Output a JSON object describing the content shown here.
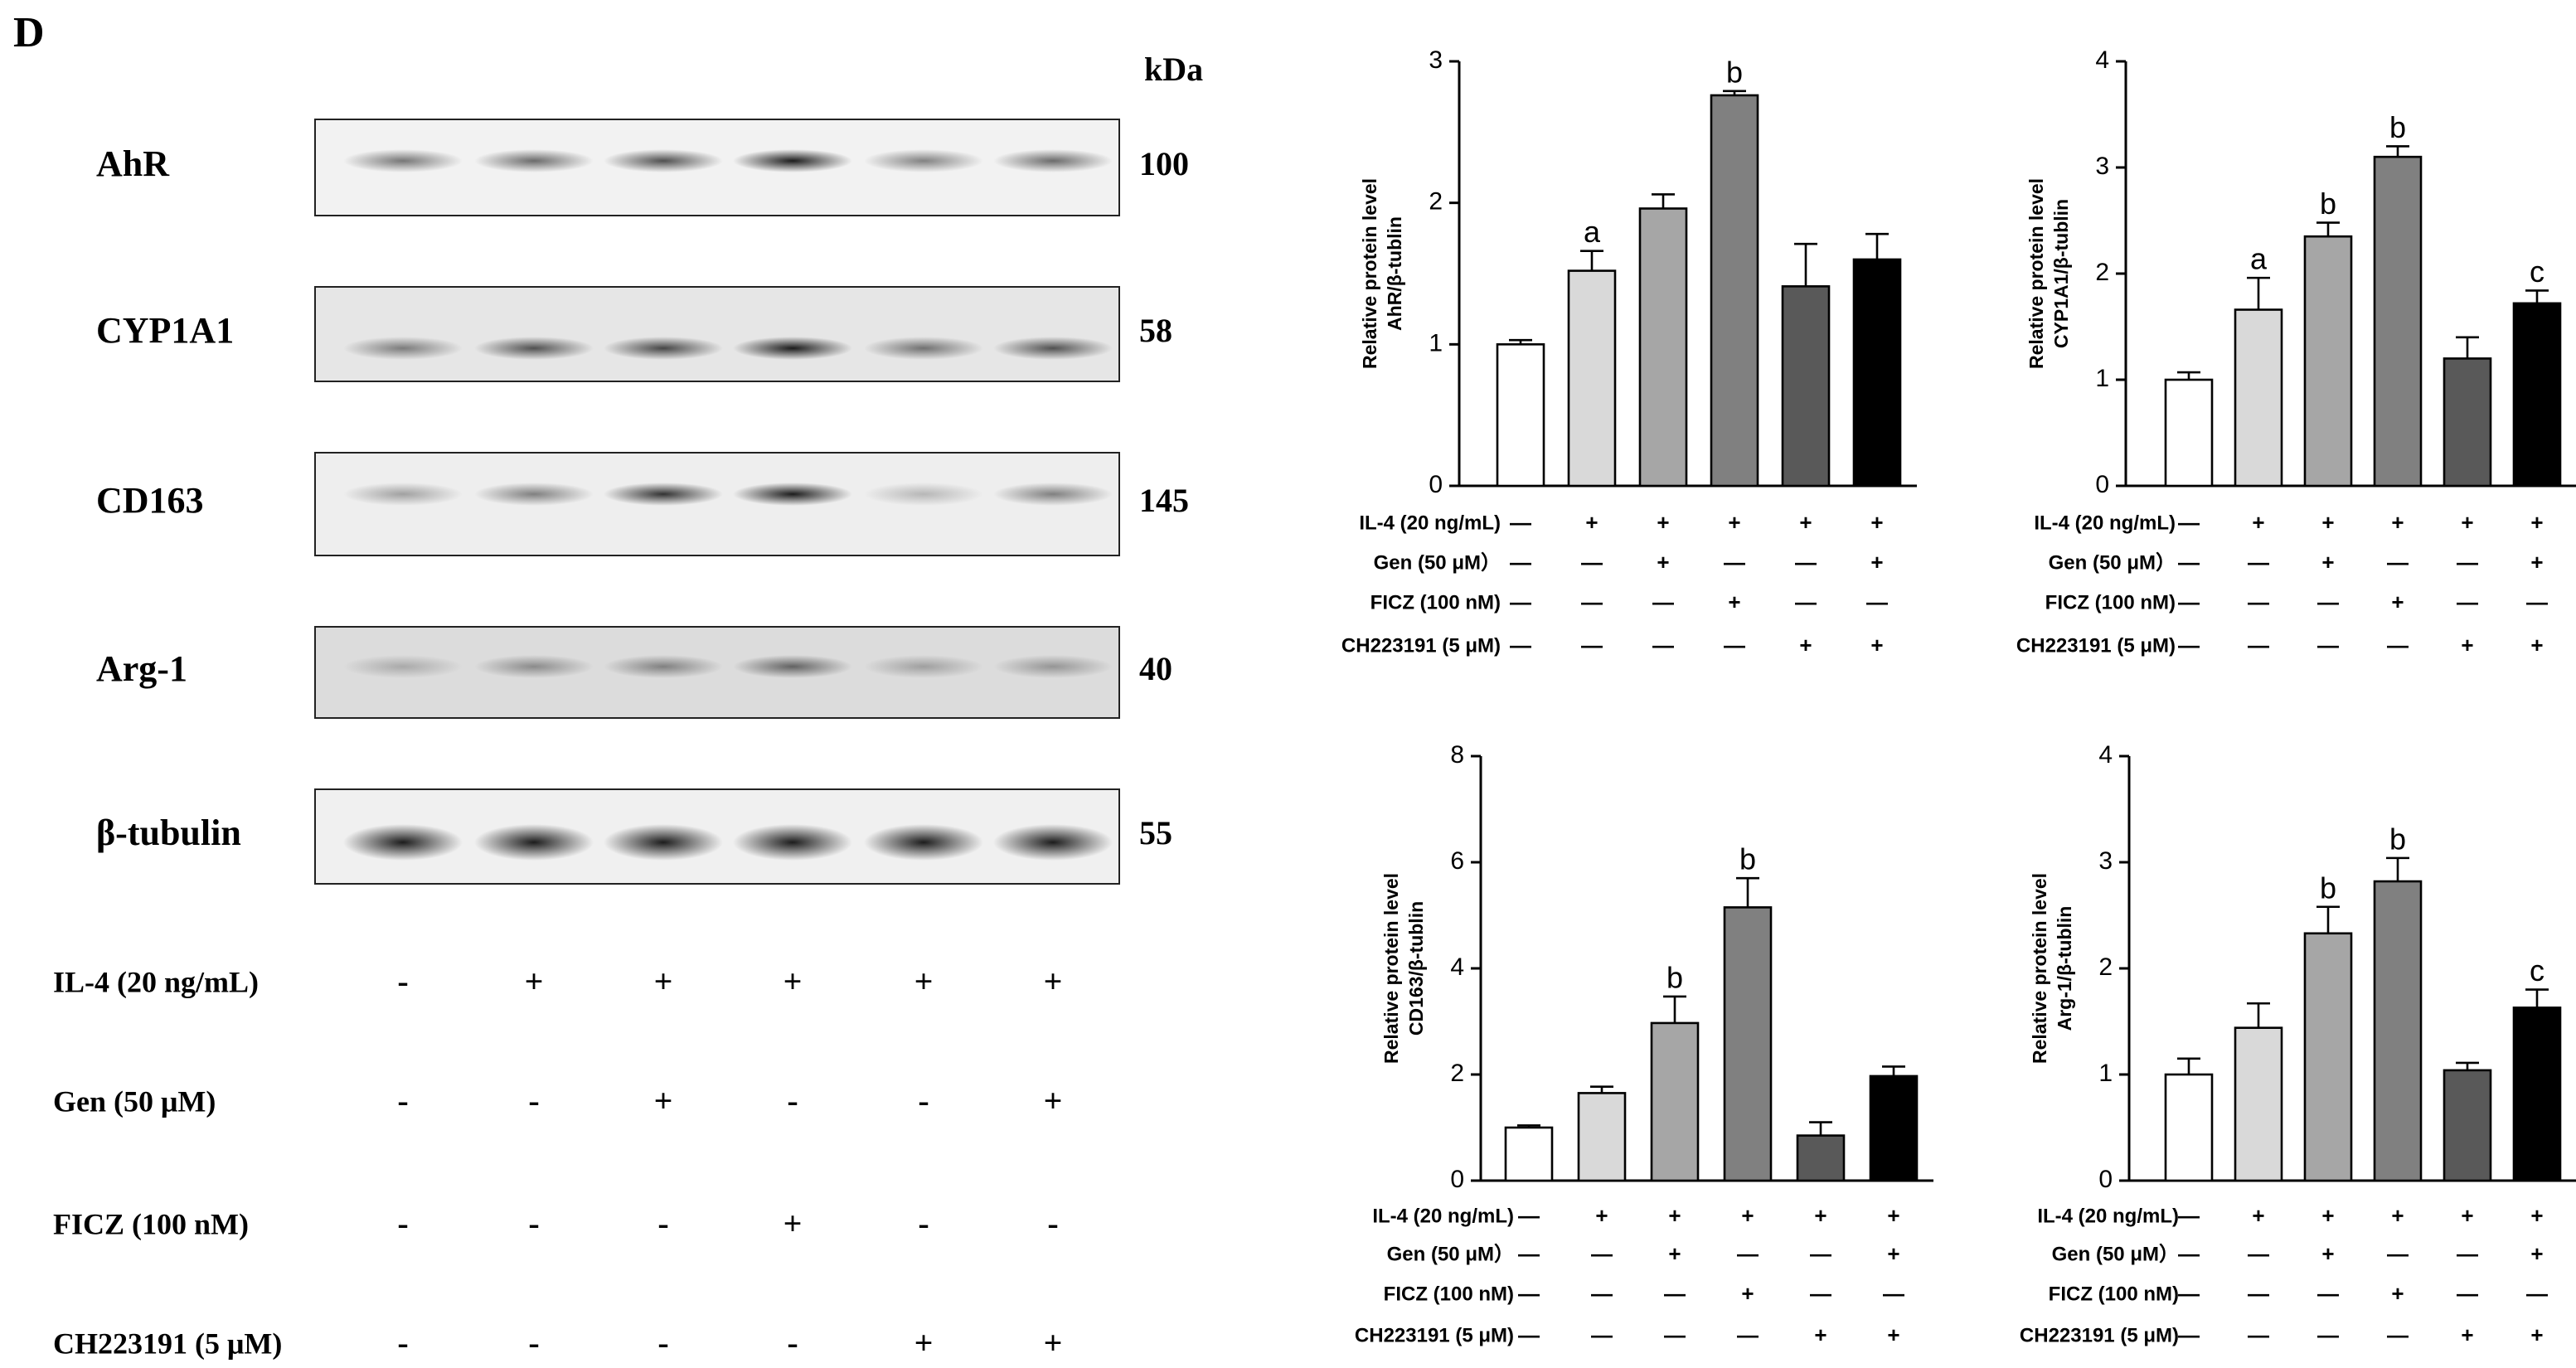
{
  "panel_label": "D",
  "blot": {
    "kda_header": "kDa",
    "rows": [
      {
        "label": "AhR",
        "kda": "100"
      },
      {
        "label": "CYP1A1",
        "kda": "58"
      },
      {
        "label": "CD163",
        "kda": "145"
      },
      {
        "label": "Arg-1",
        "kda": "40"
      },
      {
        "label": "β-tubulin",
        "kda": "55"
      }
    ],
    "treatments": [
      {
        "label": "IL-4 (20 ng/mL)",
        "signs": [
          "-",
          "+",
          "+",
          "+",
          "+",
          "+"
        ]
      },
      {
        "label": "Gen (50 μM)",
        "signs": [
          "-",
          "-",
          "+",
          "-",
          "-",
          "+"
        ]
      },
      {
        "label": "FICZ (100 nM)",
        "signs": [
          "-",
          "-",
          "-",
          "+",
          "-",
          "-"
        ]
      },
      {
        "label": "CH223191 (5 μM)",
        "signs": [
          "-",
          "-",
          "-",
          "-",
          "+",
          "+"
        ]
      }
    ]
  },
  "chart_data": [
    {
      "type": "bar",
      "y_label_lines": [
        "Relative protein level",
        "AhR/β-tublin"
      ],
      "values": [
        1.0,
        1.52,
        1.96,
        2.76,
        1.41,
        1.6
      ],
      "errors": [
        0.03,
        0.14,
        0.1,
        0.03,
        0.3,
        0.18
      ],
      "annotations": [
        null,
        "a",
        null,
        "b",
        null,
        null
      ],
      "colors": [
        "#ffffff",
        "#d9d9d9",
        "#a6a6a6",
        "#808080",
        "#595959",
        "#000000"
      ],
      "ylim": [
        0,
        3
      ],
      "yticks": [
        0,
        1,
        2,
        3
      ],
      "treatments": [
        {
          "label": "IL-4 (20 ng/mL)",
          "signs": [
            "—",
            "+",
            "+",
            "+",
            "+",
            "+"
          ]
        },
        {
          "label": "Gen (50 μM）",
          "signs": [
            "—",
            "—",
            "+",
            "—",
            "—",
            "+"
          ]
        },
        {
          "label": "FICZ (100 nM)",
          "signs": [
            "—",
            "—",
            "—",
            "+",
            "—",
            "—"
          ]
        },
        {
          "label": "CH223191 (5 μM)",
          "signs": [
            "—",
            "—",
            "—",
            "—",
            "+",
            "+"
          ]
        }
      ]
    },
    {
      "type": "bar",
      "y_label_lines": [
        "Relative protein level",
        "CYP1A1/β-tublin"
      ],
      "values": [
        1.0,
        1.66,
        2.35,
        3.1,
        1.2,
        1.72
      ],
      "errors": [
        0.07,
        0.3,
        0.13,
        0.1,
        0.2,
        0.12
      ],
      "annotations": [
        null,
        "a",
        "b",
        "b",
        null,
        "c"
      ],
      "colors": [
        "#ffffff",
        "#d9d9d9",
        "#a6a6a6",
        "#808080",
        "#595959",
        "#000000"
      ],
      "ylim": [
        0,
        4
      ],
      "yticks": [
        0,
        1,
        2,
        3,
        4
      ],
      "treatments": [
        {
          "label": "IL-4 (20 ng/mL)",
          "signs": [
            "—",
            "+",
            "+",
            "+",
            "+",
            "+"
          ]
        },
        {
          "label": "Gen (50 μM）",
          "signs": [
            "—",
            "—",
            "+",
            "—",
            "—",
            "+"
          ]
        },
        {
          "label": "FICZ (100 nM)",
          "signs": [
            "—",
            "—",
            "—",
            "+",
            "—",
            "—"
          ]
        },
        {
          "label": "CH223191 (5 μM)",
          "signs": [
            "—",
            "—",
            "—",
            "—",
            "+",
            "+"
          ]
        }
      ]
    },
    {
      "type": "bar",
      "y_label_lines": [
        "Relative protein level",
        "CD163/β-tublin"
      ],
      "values": [
        1.0,
        1.65,
        2.97,
        5.15,
        0.85,
        1.97
      ],
      "errors": [
        0.04,
        0.12,
        0.5,
        0.55,
        0.25,
        0.18
      ],
      "annotations": [
        null,
        null,
        "b",
        "b",
        null,
        null
      ],
      "colors": [
        "#ffffff",
        "#d9d9d9",
        "#a6a6a6",
        "#808080",
        "#595959",
        "#000000"
      ],
      "ylim": [
        0,
        8
      ],
      "yticks": [
        0,
        2,
        4,
        6,
        8
      ],
      "treatments": [
        {
          "label": "IL-4 (20 ng/mL)",
          "signs": [
            "—",
            "+",
            "+",
            "+",
            "+",
            "+"
          ]
        },
        {
          "label": "Gen (50 μM）",
          "signs": [
            "—",
            "—",
            "+",
            "—",
            "—",
            "+"
          ]
        },
        {
          "label": "FICZ (100 nM)",
          "signs": [
            "—",
            "—",
            "—",
            "+",
            "—",
            "—"
          ]
        },
        {
          "label": "CH223191 (5 μM)",
          "signs": [
            "—",
            "—",
            "—",
            "—",
            "+",
            "+"
          ]
        }
      ]
    },
    {
      "type": "bar",
      "y_label_lines": [
        "Relative protein level",
        "Arg-1/β-tublin"
      ],
      "values": [
        1.0,
        1.44,
        2.33,
        2.82,
        1.04,
        1.63
      ],
      "errors": [
        0.15,
        0.23,
        0.25,
        0.22,
        0.07,
        0.17
      ],
      "annotations": [
        null,
        null,
        "b",
        "b",
        null,
        "c"
      ],
      "colors": [
        "#ffffff",
        "#d9d9d9",
        "#a6a6a6",
        "#808080",
        "#595959",
        "#000000"
      ],
      "ylim": [
        0,
        4
      ],
      "yticks": [
        0,
        1,
        2,
        3,
        4
      ],
      "treatments": [
        {
          "label": "IL-4 (20 ng/mL)",
          "signs": [
            "—",
            "+",
            "+",
            "+",
            "+",
            "+"
          ]
        },
        {
          "label": "Gen (50 μM）",
          "signs": [
            "—",
            "—",
            "+",
            "—",
            "—",
            "+"
          ]
        },
        {
          "label": "FICZ (100 nM)",
          "signs": [
            "—",
            "—",
            "—",
            "+",
            "—",
            "—"
          ]
        },
        {
          "label": "CH223191 (5 μM)",
          "signs": [
            "—",
            "—",
            "—",
            "—",
            "+",
            "+"
          ]
        }
      ]
    }
  ]
}
